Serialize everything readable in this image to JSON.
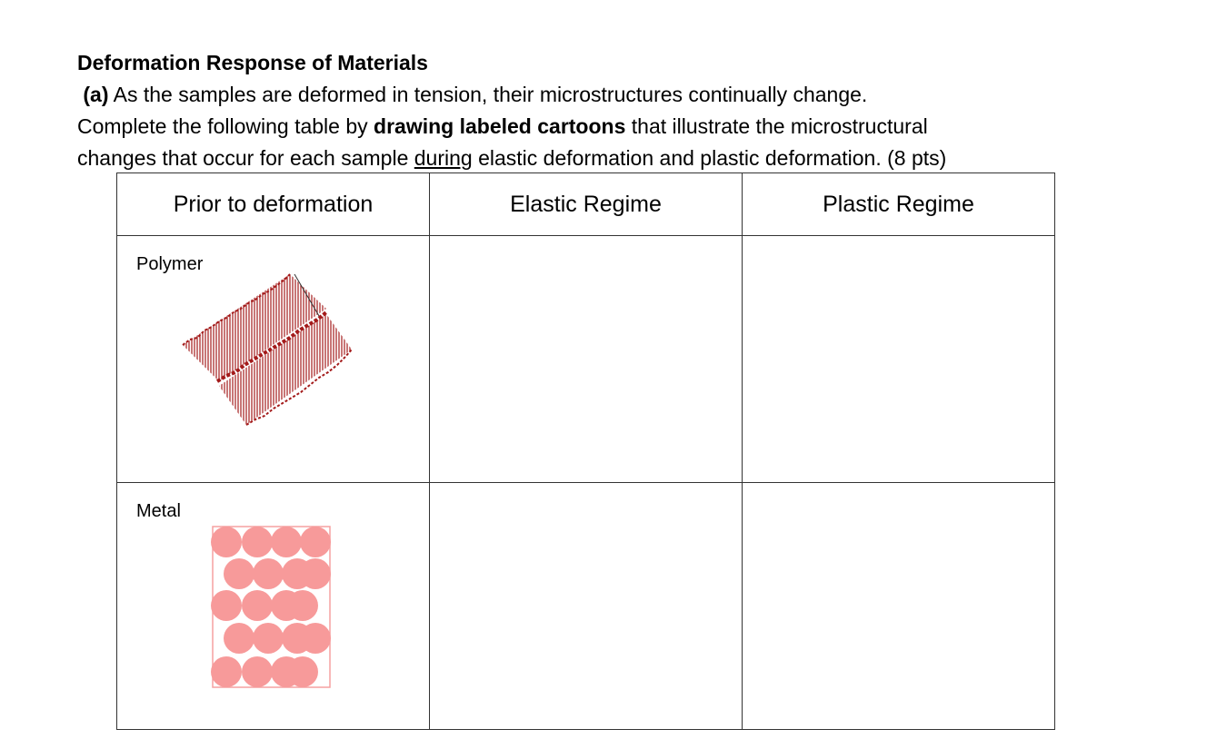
{
  "header": {
    "title": "Deformation Response of Materials"
  },
  "question": {
    "label": "(a)",
    "text": "As the samples are deformed in tension, their microstructures continually change."
  },
  "instructions": {
    "line1": [
      "Complete the following table by ",
      "drawing labeled cartoons",
      " that illustrate the microstructural"
    ],
    "line2": [
      "changes that occur for each sample ",
      "during",
      " elastic deformation and plastic deformation. (8 pts)"
    ]
  },
  "table": {
    "headers": [
      "Prior to deformation",
      "Elastic Regime",
      "Plastic Regime"
    ],
    "rows": [
      "Polymer",
      "Metal"
    ]
  }
}
